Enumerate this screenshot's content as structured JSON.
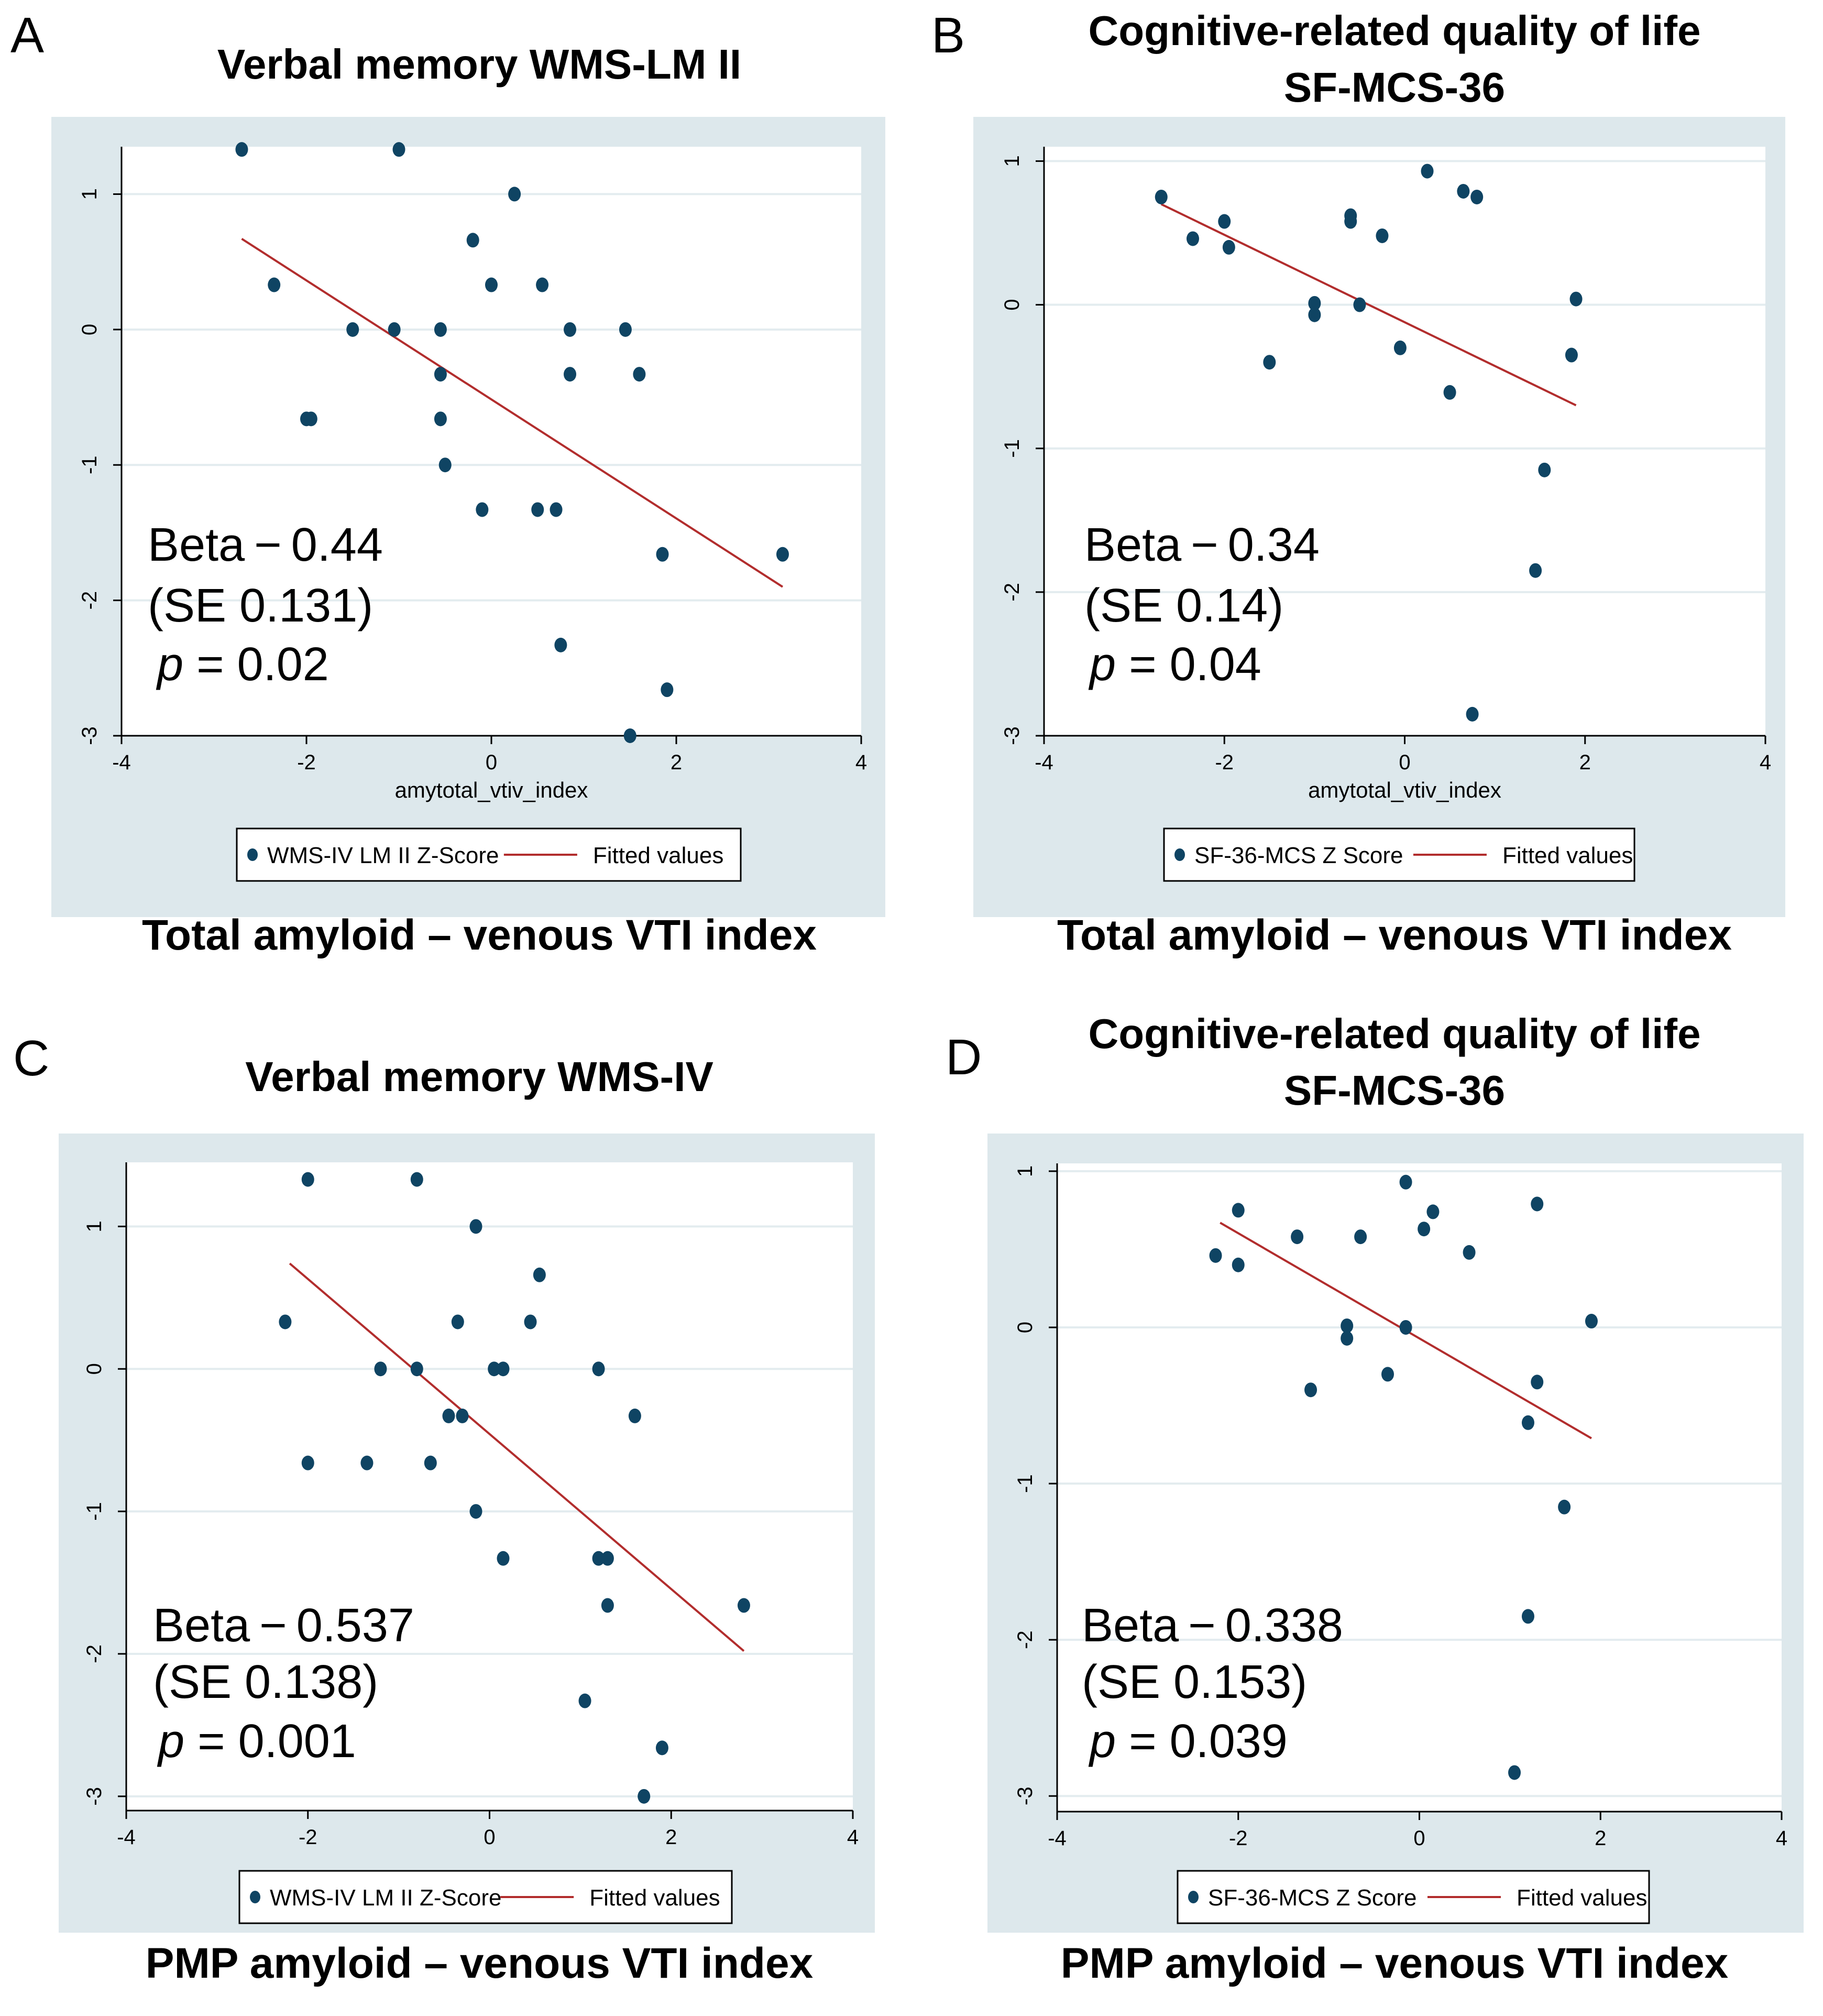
{
  "colors": {
    "outer_bg": "#dde8ec",
    "plot_bg": "#ffffff",
    "grid": "#e3ecef",
    "marker": "#0f4463",
    "fit_line": "#b22d2d",
    "text": "#000000"
  },
  "chart_data": [
    {
      "panel_letter": "A",
      "type": "scatter",
      "title_lines": [
        "Verbal memory WMS-LM II"
      ],
      "xlabel": "amytotal_vtiv_index",
      "ylabel": "",
      "xlim": [
        -4,
        4
      ],
      "ylim": [
        -3,
        1.35
      ],
      "xticks": [
        -4,
        -2,
        0,
        2,
        4
      ],
      "yticks": [
        -3,
        -2,
        -1,
        0,
        1
      ],
      "xtick_labels": [
        "-4",
        "-2",
        "0",
        "2",
        "4"
      ],
      "ytick_labels": [
        "-3",
        "-2",
        "-1",
        "0",
        "1"
      ],
      "grid": true,
      "x": [
        -2.7,
        -1.0,
        -2.35,
        0.25,
        -0.2,
        0.0,
        0.55,
        -1.5,
        -1.05,
        -0.55,
        0.85,
        1.45,
        -0.55,
        0.85,
        1.6,
        -2.0,
        -1.95,
        -0.55,
        -0.5,
        -0.1,
        0.5,
        0.7,
        1.85,
        3.15,
        0.75,
        1.9,
        1.5
      ],
      "y": [
        1.33,
        1.33,
        0.33,
        1.0,
        0.66,
        0.33,
        0.33,
        0.0,
        0.0,
        0.0,
        0.0,
        0.0,
        -0.33,
        -0.33,
        -0.33,
        -0.66,
        -0.66,
        -0.66,
        -1.0,
        -1.33,
        -1.33,
        -1.33,
        -1.66,
        -1.66,
        -2.33,
        -2.66,
        -3.0
      ],
      "fit": {
        "x": [
          -2.7,
          3.15
        ],
        "y": [
          0.67,
          -1.9
        ]
      },
      "annotation": {
        "beta": "Beta − 0.44",
        "se": "(SE 0.131)",
        "p_symbol": "p",
        "p_rest": " = 0.02"
      },
      "legend": {
        "series_label": "WMS-IV LM II Z-Score",
        "fit_label": "Fitted values"
      },
      "caption": "Total amyloid – venous VTI index"
    },
    {
      "panel_letter": "B",
      "type": "scatter",
      "title_lines": [
        "Cognitive-related quality of life",
        "SF-MCS-36"
      ],
      "xlabel": "amytotal_vtiv_index",
      "ylabel": "",
      "xlim": [
        -4,
        4
      ],
      "ylim": [
        -3.0,
        1.1
      ],
      "xticks": [
        -4,
        -2,
        0,
        2,
        4
      ],
      "yticks": [
        -3,
        -2,
        -1,
        0,
        1
      ],
      "xtick_labels": [
        "-4",
        "-2",
        "0",
        "2",
        "4"
      ],
      "ytick_labels": [
        "-3",
        "-2",
        "-1",
        "0",
        "1"
      ],
      "grid": true,
      "x": [
        -2.7,
        -2.35,
        -2.0,
        -1.95,
        -1.5,
        -1.0,
        -1.0,
        -0.6,
        -0.6,
        -0.5,
        -0.25,
        -0.05,
        0.25,
        0.5,
        0.65,
        0.75,
        0.8,
        1.45,
        1.55,
        1.85,
        1.9
      ],
      "y": [
        0.75,
        0.46,
        0.58,
        0.4,
        -0.4,
        -0.07,
        0.01,
        0.58,
        0.62,
        0.0,
        0.48,
        -0.3,
        0.93,
        -0.61,
        0.79,
        -2.85,
        0.75,
        -1.85,
        -1.15,
        -0.35,
        0.04
      ],
      "fit": {
        "x": [
          -2.7,
          1.9
        ],
        "y": [
          0.7,
          -0.7
        ]
      },
      "annotation": {
        "beta": "Beta − 0.34",
        "se": "(SE 0.14)",
        "p_symbol": "p",
        "p_rest": " = 0.04"
      },
      "legend": {
        "series_label": "SF-36-MCS Z Score",
        "fit_label": "Fitted values"
      },
      "caption": "Total amyloid – venous VTI index"
    },
    {
      "panel_letter": "C",
      "type": "scatter",
      "title_lines": [
        "Verbal memory WMS-IV"
      ],
      "xlabel": "",
      "ylabel": "",
      "xlim": [
        -4,
        4
      ],
      "ylim": [
        -3.1,
        1.45
      ],
      "xticks": [
        -4,
        -2,
        0,
        2,
        4
      ],
      "yticks": [
        -3,
        -2,
        -1,
        0,
        1
      ],
      "xtick_labels": [
        "-4",
        "-2",
        "0",
        "2",
        "4"
      ],
      "ytick_labels": [
        "-3",
        "-2",
        "-1",
        "0",
        "1"
      ],
      "grid": true,
      "x": [
        -2.0,
        -0.8,
        -0.15,
        0.55,
        -2.25,
        -0.35,
        0.45,
        -1.2,
        -0.8,
        0.05,
        0.15,
        1.2,
        -0.45,
        -0.3,
        1.6,
        -2.0,
        -1.35,
        -0.65,
        -0.15,
        0.15,
        1.2,
        1.3,
        1.3,
        2.8,
        1.05,
        1.9,
        1.7
      ],
      "y": [
        1.33,
        1.33,
        1.0,
        0.66,
        0.33,
        0.33,
        0.33,
        0.0,
        0.0,
        0.0,
        0.0,
        0.0,
        -0.33,
        -0.33,
        -0.33,
        -0.66,
        -0.66,
        -0.66,
        -1.0,
        -1.33,
        -1.33,
        -1.33,
        -1.66,
        -1.66,
        -2.33,
        -2.66,
        -3.0
      ],
      "fit": {
        "x": [
          -2.2,
          2.8
        ],
        "y": [
          0.74,
          -1.98
        ]
      },
      "annotation": {
        "beta": "Beta − 0.537",
        "se": "(SE 0.138)",
        "p_symbol": "p",
        "p_rest": " = 0.001"
      },
      "legend": {
        "series_label": "WMS-IV LM II Z-Score",
        "fit_label": "Fitted values"
      },
      "caption": "PMP amyloid – venous VTI index"
    },
    {
      "panel_letter": "D",
      "type": "scatter",
      "title_lines": [
        "Cognitive-related quality of life",
        "SF-MCS-36"
      ],
      "xlabel": "",
      "ylabel": "",
      "xlim": [
        -4,
        4
      ],
      "ylim": [
        -3.1,
        1.05
      ],
      "xticks": [
        -4,
        -2,
        0,
        2,
        4
      ],
      "yticks": [
        -3,
        -2,
        -1,
        0,
        1
      ],
      "xtick_labels": [
        "-4",
        "-2",
        "0",
        "2",
        "4"
      ],
      "ytick_labels": [
        "-3",
        "-2",
        "-1",
        "0",
        "1"
      ],
      "grid": true,
      "x": [
        -2.25,
        -2.0,
        -2.0,
        -1.35,
        -1.2,
        -0.8,
        -0.8,
        -0.65,
        -0.35,
        -0.15,
        -0.15,
        0.05,
        0.15,
        0.55,
        1.2,
        1.2,
        1.05,
        1.3,
        1.3,
        1.6,
        1.9
      ],
      "y": [
        0.46,
        0.75,
        0.4,
        0.58,
        -0.4,
        0.01,
        -0.07,
        0.58,
        -0.3,
        0.93,
        0.0,
        0.63,
        0.74,
        0.48,
        -0.61,
        -1.85,
        -2.85,
        0.79,
        -0.35,
        -1.15,
        0.04
      ],
      "fit": {
        "x": [
          -2.2,
          1.9
        ],
        "y": [
          0.67,
          -0.71
        ]
      },
      "annotation": {
        "beta": "Beta − 0.338",
        "se": "(SE 0.153)",
        "p_symbol": "p",
        "p_rest": " = 0.039"
      },
      "legend": {
        "series_label": "SF-36-MCS Z Score",
        "fit_label": "Fitted values"
      },
      "caption": "PMP amyloid – venous VTI index"
    }
  ]
}
